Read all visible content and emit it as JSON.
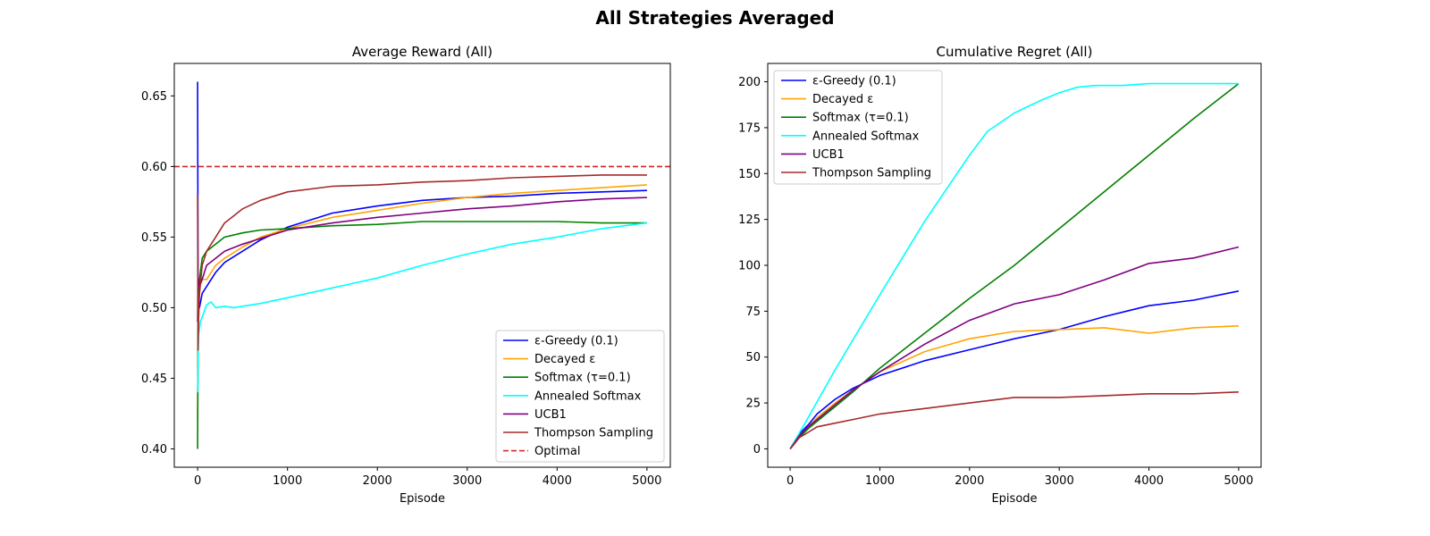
{
  "suptitle": "All Strategies Averaged",
  "chart_data": [
    {
      "type": "line",
      "title": "Average Reward (All)",
      "xlabel": "Episode",
      "ylabel": "",
      "xlim": [
        -260,
        5260
      ],
      "ylim": [
        0.387,
        0.673
      ],
      "xticks": [
        0,
        1000,
        2000,
        3000,
        4000,
        5000
      ],
      "xtick_labels": [
        "0",
        "1000",
        "2000",
        "3000",
        "4000",
        "5000"
      ],
      "yticks": [
        0.4,
        0.45,
        0.5,
        0.55,
        0.6,
        0.65
      ],
      "ytick_labels": [
        "0.40",
        "0.45",
        "0.50",
        "0.55",
        "0.60",
        "0.65"
      ],
      "grid": false,
      "legend_position": "lower-right",
      "series": [
        {
          "name": "ε-Greedy (0.1)",
          "color": "#0000ff",
          "style": "solid",
          "x": [
            0,
            5,
            10,
            20,
            50,
            100,
            200,
            300,
            500,
            700,
            1000,
            1500,
            2000,
            2500,
            3000,
            3500,
            4000,
            4500,
            5000
          ],
          "y": [
            0.66,
            0.52,
            0.5,
            0.5,
            0.51,
            0.515,
            0.525,
            0.532,
            0.54,
            0.548,
            0.557,
            0.567,
            0.572,
            0.576,
            0.578,
            0.579,
            0.581,
            0.582,
            0.583
          ]
        },
        {
          "name": "Decayed ε",
          "color": "#ffa500",
          "style": "solid",
          "x": [
            0,
            5,
            10,
            20,
            50,
            100,
            200,
            300,
            500,
            700,
            1000,
            1500,
            2000,
            2500,
            3000,
            3500,
            4000,
            4500,
            5000
          ],
          "y": [
            0.42,
            0.5,
            0.51,
            0.515,
            0.52,
            0.52,
            0.53,
            0.535,
            0.543,
            0.55,
            0.556,
            0.564,
            0.569,
            0.574,
            0.578,
            0.581,
            0.583,
            0.585,
            0.587
          ]
        },
        {
          "name": "Softmax (τ=0.1)",
          "color": "#008000",
          "style": "solid",
          "x": [
            0,
            5,
            10,
            20,
            50,
            100,
            200,
            300,
            500,
            700,
            1000,
            1500,
            2000,
            2500,
            3000,
            3500,
            4000,
            4500,
            5000
          ],
          "y": [
            0.4,
            0.48,
            0.5,
            0.52,
            0.535,
            0.54,
            0.545,
            0.55,
            0.553,
            0.555,
            0.556,
            0.558,
            0.559,
            0.561,
            0.561,
            0.561,
            0.561,
            0.56,
            0.56
          ]
        },
        {
          "name": "Annealed Softmax",
          "color": "#00ffff",
          "style": "solid",
          "x": [
            0,
            10,
            30,
            60,
            100,
            150,
            200,
            300,
            400,
            500,
            700,
            1000,
            1500,
            2000,
            2500,
            3000,
            3500,
            4000,
            4500,
            5000
          ],
          "y": [
            0.44,
            0.48,
            0.49,
            0.495,
            0.502,
            0.504,
            0.5,
            0.501,
            0.5,
            0.501,
            0.503,
            0.507,
            0.514,
            0.521,
            0.53,
            0.538,
            0.545,
            0.55,
            0.556,
            0.56
          ]
        },
        {
          "name": "UCB1",
          "color": "#800080",
          "style": "solid",
          "x": [
            0,
            5,
            10,
            20,
            50,
            100,
            200,
            300,
            500,
            700,
            1000,
            1500,
            2000,
            2500,
            3000,
            3500,
            4000,
            4500,
            5000
          ],
          "y": [
            0.49,
            0.52,
            0.52,
            0.515,
            0.52,
            0.53,
            0.535,
            0.54,
            0.545,
            0.549,
            0.555,
            0.56,
            0.564,
            0.567,
            0.57,
            0.572,
            0.575,
            0.577,
            0.578
          ]
        },
        {
          "name": "Thompson Sampling",
          "color": "#a52a2a",
          "style": "solid",
          "x": [
            0,
            5,
            10,
            20,
            50,
            100,
            200,
            300,
            400,
            500,
            700,
            1000,
            1500,
            2000,
            2500,
            3000,
            3500,
            4000,
            4500,
            5000
          ],
          "y": [
            0.58,
            0.47,
            0.49,
            0.51,
            0.53,
            0.54,
            0.55,
            0.56,
            0.565,
            0.57,
            0.576,
            0.582,
            0.586,
            0.587,
            0.589,
            0.59,
            0.592,
            0.593,
            0.594,
            0.594
          ]
        },
        {
          "name": "Optimal",
          "color": "#d62728",
          "style": "dashed",
          "x": [
            -260,
            5260
          ],
          "y": [
            0.6,
            0.6
          ]
        }
      ]
    },
    {
      "type": "line",
      "title": "Cumulative Regret (All)",
      "xlabel": "Episode",
      "ylabel": "",
      "xlim": [
        -250,
        5250
      ],
      "ylim": [
        -10,
        210
      ],
      "xticks": [
        0,
        1000,
        2000,
        3000,
        4000,
        5000
      ],
      "xtick_labels": [
        "0",
        "1000",
        "2000",
        "3000",
        "4000",
        "5000"
      ],
      "yticks": [
        0,
        25,
        50,
        75,
        100,
        125,
        150,
        175,
        200
      ],
      "ytick_labels": [
        "0",
        "25",
        "50",
        "75",
        "100",
        "125",
        "150",
        "175",
        "200"
      ],
      "grid": false,
      "legend_position": "top-left",
      "series": [
        {
          "name": "ε-Greedy (0.1)",
          "color": "#0000ff",
          "style": "solid",
          "x": [
            0,
            100,
            200,
            300,
            500,
            700,
            1000,
            1500,
            2000,
            2500,
            3000,
            3500,
            4000,
            4500,
            5000
          ],
          "y": [
            0,
            8,
            13,
            19,
            27,
            33,
            40,
            48,
            54,
            60,
            65,
            72,
            78,
            81,
            86
          ]
        },
        {
          "name": "Decayed ε",
          "color": "#ffa500",
          "style": "solid",
          "x": [
            0,
            100,
            200,
            300,
            500,
            700,
            1000,
            1500,
            2000,
            2500,
            3000,
            3500,
            4000,
            4500,
            5000
          ],
          "y": [
            0,
            7,
            12,
            17,
            25,
            32,
            42,
            53,
            60,
            64,
            65,
            66,
            63,
            66,
            67
          ]
        },
        {
          "name": "Softmax (τ=0.1)",
          "color": "#008000",
          "style": "solid",
          "x": [
            0,
            100,
            200,
            300,
            500,
            700,
            1000,
            1500,
            2000,
            2500,
            3000,
            3500,
            4000,
            4500,
            5000
          ],
          "y": [
            0,
            6,
            11,
            15,
            23,
            31,
            44,
            63,
            82,
            100,
            120,
            140,
            160,
            180,
            199
          ]
        },
        {
          "name": "Annealed Softmax",
          "color": "#00ffff",
          "style": "solid",
          "x": [
            0,
            200,
            500,
            1000,
            1500,
            2000,
            2200,
            2500,
            2800,
            3000,
            3200,
            3400,
            3700,
            4000,
            4500,
            5000
          ],
          "y": [
            0,
            17,
            43,
            84,
            124,
            160,
            173,
            183,
            190,
            194,
            197,
            198,
            198,
            199,
            199,
            199
          ]
        },
        {
          "name": "UCB1",
          "color": "#800080",
          "style": "solid",
          "x": [
            0,
            100,
            200,
            300,
            500,
            700,
            1000,
            1500,
            2000,
            2500,
            3000,
            3500,
            4000,
            4500,
            5000
          ],
          "y": [
            0,
            7,
            12,
            16,
            24,
            32,
            42,
            57,
            70,
            79,
            84,
            92,
            101,
            104,
            110
          ]
        },
        {
          "name": "Thompson Sampling",
          "color": "#a52a2a",
          "style": "solid",
          "x": [
            0,
            100,
            200,
            300,
            500,
            700,
            1000,
            1500,
            2000,
            2500,
            3000,
            3500,
            4000,
            4500,
            5000
          ],
          "y": [
            0,
            6,
            9,
            12,
            14,
            16,
            19,
            22,
            25,
            28,
            28,
            29,
            30,
            30,
            31
          ]
        }
      ]
    }
  ]
}
